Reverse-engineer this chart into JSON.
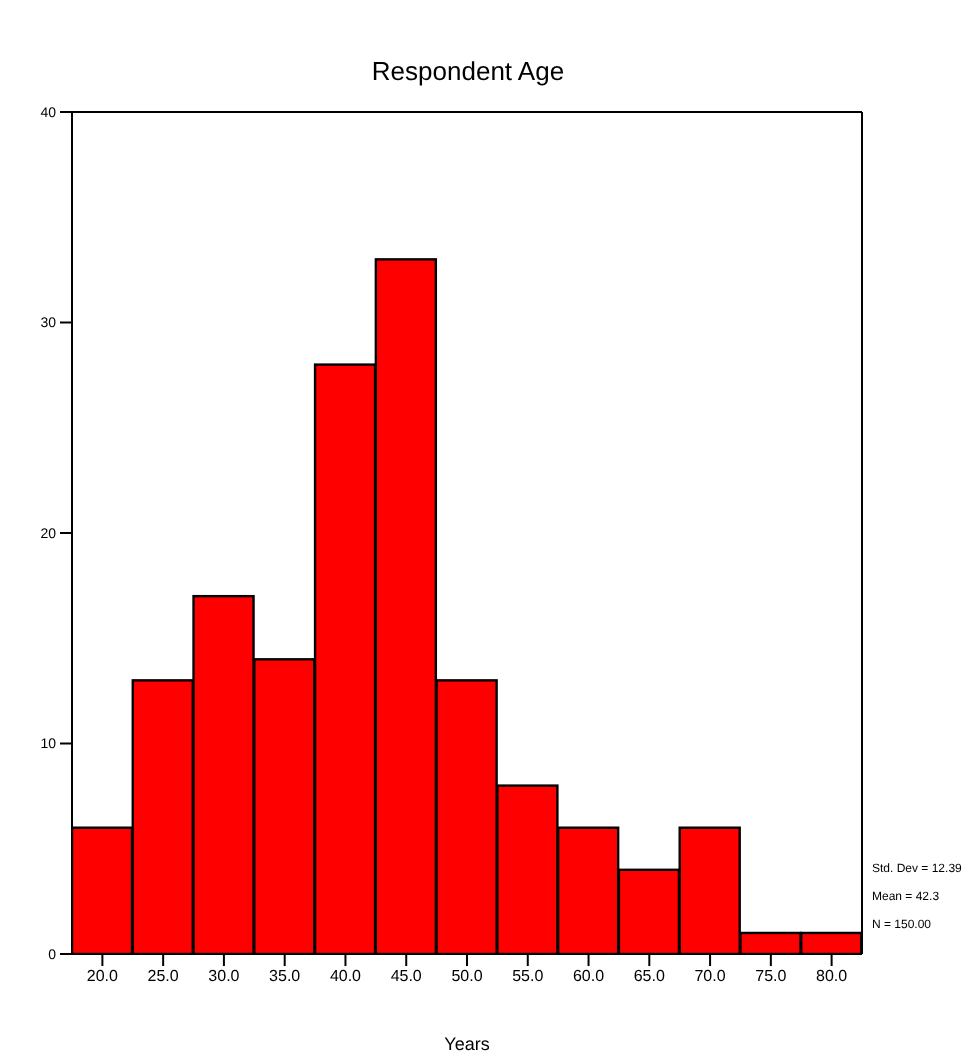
{
  "chart_data": {
    "type": "histogram",
    "title": "Respondent Age",
    "xlabel": "Years",
    "bins": [
      17.5,
      22.5,
      27.5,
      32.5,
      37.5,
      42.5,
      47.5,
      52.5,
      57.5,
      62.5,
      67.5,
      72.5,
      77.5,
      82.5
    ],
    "values": [
      6,
      13,
      17,
      14,
      28,
      33,
      13,
      8,
      6,
      4,
      6,
      1,
      1
    ],
    "color": "#ff0000",
    "xlim": [
      17.5,
      82.5
    ],
    "xticks": [
      {
        "value": 20,
        "label": "20.0"
      },
      {
        "value": 25,
        "label": "25.0"
      },
      {
        "value": 30,
        "label": "30.0"
      },
      {
        "value": 35,
        "label": "35.0"
      },
      {
        "value": 40,
        "label": "40.0"
      },
      {
        "value": 45,
        "label": "45.0"
      },
      {
        "value": 50,
        "label": "50.0"
      },
      {
        "value": 55,
        "label": "55.0"
      },
      {
        "value": 60,
        "label": "60.0"
      },
      {
        "value": 65,
        "label": "65.0"
      },
      {
        "value": 70,
        "label": "70.0"
      },
      {
        "value": 75,
        "label": "75.0"
      },
      {
        "value": 80,
        "label": "80.0"
      }
    ],
    "ylim": [
      0,
      40
    ],
    "yticks": [
      0,
      10,
      20,
      30,
      40
    ],
    "grid": false,
    "legend": false,
    "annotations": [
      "Std. Dev = 12.39",
      "Mean = 42.3",
      "N = 150.00"
    ]
  }
}
